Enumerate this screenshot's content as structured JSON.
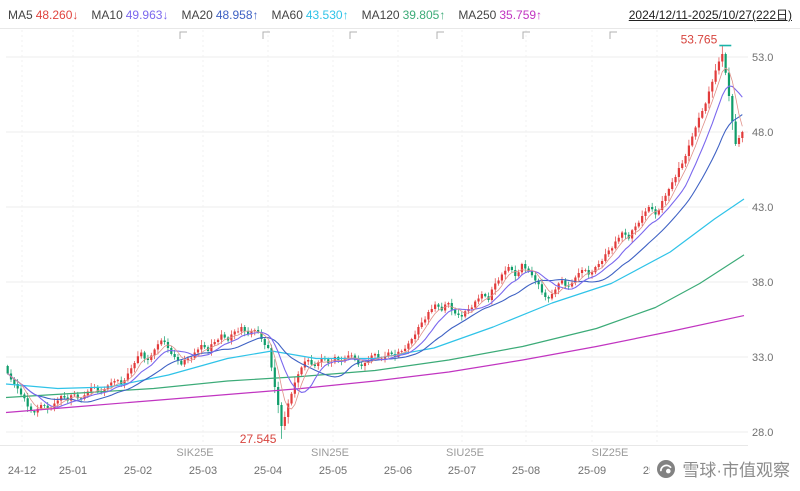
{
  "legend": {
    "items": [
      {
        "label": "MA5",
        "value": "48.260↓",
        "color": "#e0443e"
      },
      {
        "label": "MA10",
        "value": "49.963↓",
        "color": "#7b68ee"
      },
      {
        "label": "MA20",
        "value": "48.958↑",
        "color": "#3f62c4"
      },
      {
        "label": "MA60",
        "value": "43.530↑",
        "color": "#2fc3e8"
      },
      {
        "label": "MA120",
        "value": "39.805↑",
        "color": "#3cab78"
      },
      {
        "label": "MA250",
        "value": "35.759↑",
        "color": "#c135c1"
      }
    ]
  },
  "date_range": "2024/12/11-2025/10/27(222日)",
  "watermark": "雪球·市值观察",
  "chart_data": {
    "type": "candlestick",
    "title": "",
    "candle_count": 222,
    "x_ticks": [
      "24-12",
      "25-01",
      "25-02",
      "25-03",
      "25-04",
      "25-05",
      "25-06",
      "25-07",
      "25-08",
      "25-09",
      "25-10"
    ],
    "y_ticks": [
      53.0,
      48.0,
      43.0,
      38.0,
      33.0,
      28.0
    ],
    "ylim": [
      27.0,
      54.8
    ],
    "contract_labels": [
      "SIK25E",
      "SIN25E",
      "SIU25E",
      "SIZ25E"
    ],
    "high_annotation": 53.765,
    "low_annotation": 27.545,
    "grid": true,
    "legend_position": "top",
    "sampled_closes": [
      31.9,
      31.2,
      30.5,
      29.7,
      29.3,
      29.8,
      29.5,
      29.9,
      30.4,
      30.1,
      30.5,
      30.2,
      30.7,
      31.0,
      30.7,
      31.1,
      31.4,
      31.2,
      31.9,
      32.6,
      33.3,
      32.8,
      33.5,
      34.1,
      33.6,
      33.0,
      32.5,
      32.9,
      33.3,
      33.8,
      33.4,
      34.0,
      34.5,
      34.1,
      34.7,
      35.0,
      34.5,
      34.8,
      34.2,
      33.6,
      31.0,
      28.4,
      29.9,
      31.3,
      32.3,
      32.8,
      32.4,
      32.9,
      32.6,
      33.0,
      32.7,
      33.1,
      32.8,
      32.4,
      32.8,
      33.2,
      32.9,
      33.3,
      33.0,
      33.4,
      33.9,
      34.5,
      35.3,
      36.0,
      36.5,
      36.1,
      36.6,
      35.9,
      35.7,
      36.2,
      36.7,
      37.2,
      36.8,
      37.9,
      38.5,
      39.0,
      38.4,
      39.2,
      38.7,
      38.1,
      37.3,
      36.9,
      37.5,
      38.1,
      37.7,
      38.3,
      38.8,
      38.5,
      39.0,
      39.4,
      40.1,
      40.7,
      41.3,
      40.9,
      41.7,
      42.4,
      43.0,
      42.5,
      43.4,
      44.2,
      45.0,
      45.9,
      47.1,
      48.3,
      49.4,
      50.7,
      52.1,
      53.2,
      50.4,
      47.2,
      48.0
    ],
    "ma_values": {
      "MA5": 48.26,
      "MA10": 49.963,
      "MA20": 48.958,
      "MA60": 43.53,
      "MA120": 39.805,
      "MA250": 35.759
    },
    "ma_waypoints": {
      "MA60": [
        [
          0,
          31.2
        ],
        [
          0.07,
          30.9
        ],
        [
          0.14,
          31.0
        ],
        [
          0.22,
          31.8
        ],
        [
          0.3,
          32.9
        ],
        [
          0.36,
          33.4
        ],
        [
          0.42,
          32.9
        ],
        [
          0.5,
          32.9
        ],
        [
          0.58,
          33.6
        ],
        [
          0.66,
          35.0
        ],
        [
          0.74,
          36.6
        ],
        [
          0.82,
          37.9
        ],
        [
          0.9,
          40.0
        ],
        [
          0.96,
          42.2
        ],
        [
          1,
          43.53
        ]
      ],
      "MA120": [
        [
          0,
          30.3
        ],
        [
          0.1,
          30.6
        ],
        [
          0.2,
          30.9
        ],
        [
          0.3,
          31.4
        ],
        [
          0.4,
          31.7
        ],
        [
          0.5,
          32.1
        ],
        [
          0.6,
          32.8
        ],
        [
          0.7,
          33.7
        ],
        [
          0.8,
          34.9
        ],
        [
          0.88,
          36.3
        ],
        [
          0.94,
          37.9
        ],
        [
          1,
          39.805
        ]
      ],
      "MA250": [
        [
          0,
          29.3
        ],
        [
          0.1,
          29.7
        ],
        [
          0.2,
          30.1
        ],
        [
          0.3,
          30.5
        ],
        [
          0.4,
          30.9
        ],
        [
          0.5,
          31.4
        ],
        [
          0.6,
          32.0
        ],
        [
          0.7,
          32.8
        ],
        [
          0.8,
          33.7
        ],
        [
          0.9,
          34.7
        ],
        [
          1,
          35.759
        ]
      ]
    },
    "colors": {
      "up": "#e23b3b",
      "down": "#0f9d6a",
      "ma5": "#e0918a",
      "ma10": "#7b68ee",
      "ma20": "#3f62c4",
      "ma60": "#2fc3e8",
      "ma120": "#3cab78",
      "ma250": "#c135c1",
      "annotation": "#d7443e",
      "peak_dash": "#1ab3a8",
      "grid": "#ededed"
    }
  }
}
